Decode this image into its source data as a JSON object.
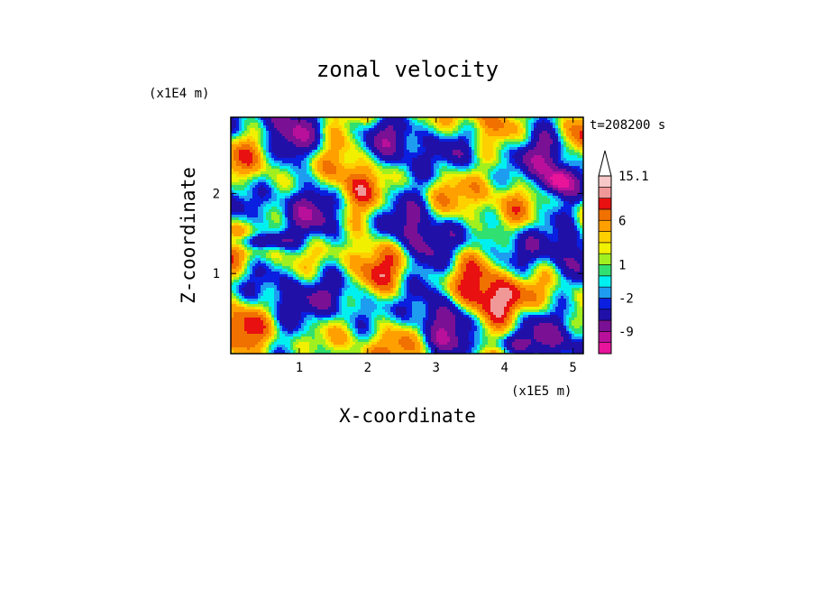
{
  "chart_data": {
    "type": "heatmap",
    "title": "zonal velocity",
    "xlabel": "X-coordinate",
    "ylabel": "Z-coordinate",
    "x_unit": "(x1E5 m)",
    "y_unit": "(x1E4 m)",
    "time_label": "t=208200 s",
    "xlim": [
      0,
      5.15
    ],
    "ylim": [
      0,
      2.95
    ],
    "xticks": [
      1,
      2,
      3,
      4,
      5
    ],
    "yticks": [
      1,
      2
    ],
    "colorbar": {
      "labels": [
        "15.1",
        "6",
        "1",
        "-2",
        "-9"
      ],
      "label_positions": [
        15.1,
        6,
        1,
        -2,
        -9
      ],
      "levels": [
        -15,
        -12,
        -9,
        -6,
        -3,
        -2,
        -1,
        0,
        1,
        2,
        3,
        4,
        6,
        8,
        10,
        12,
        15.1
      ],
      "colors": [
        "#e8149a",
        "#b8109a",
        "#7a1094",
        "#2010a8",
        "#0a1fe0",
        "#1e9cf0",
        "#00f0f0",
        "#30e070",
        "#a0f020",
        "#f0f000",
        "#ffd000",
        "#ffa000",
        "#f07000",
        "#e81010",
        "#f09898",
        "#f8c8c8"
      ],
      "extend_max": true
    },
    "field_range": [
      -15,
      15.1
    ]
  },
  "colors": {
    "frame": "#000000",
    "background": "#ffffff"
  }
}
